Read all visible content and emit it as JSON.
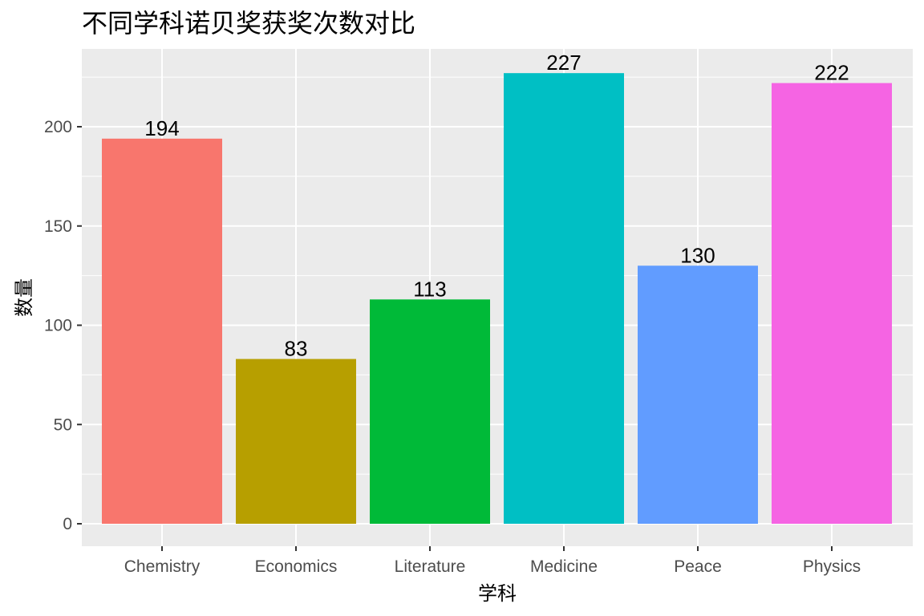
{
  "chart_data": {
    "type": "bar",
    "title": "不同学科诺贝奖获奖次数对比",
    "xlabel": "学科",
    "ylabel": "数量",
    "categories": [
      "Chemistry",
      "Economics",
      "Literature",
      "Medicine",
      "Peace",
      "Physics"
    ],
    "values": [
      194,
      83,
      113,
      227,
      130,
      222
    ],
    "colors": [
      "#F8766D",
      "#B79F00",
      "#00BA38",
      "#00BFC4",
      "#619CFF",
      "#F564E3"
    ],
    "ylim": [
      0,
      238
    ],
    "yticks": [
      0,
      50,
      100,
      150,
      200
    ],
    "grid": true,
    "legend": "none",
    "panel_background": "#EBEBEB",
    "grid_color": "#FFFFFF"
  }
}
